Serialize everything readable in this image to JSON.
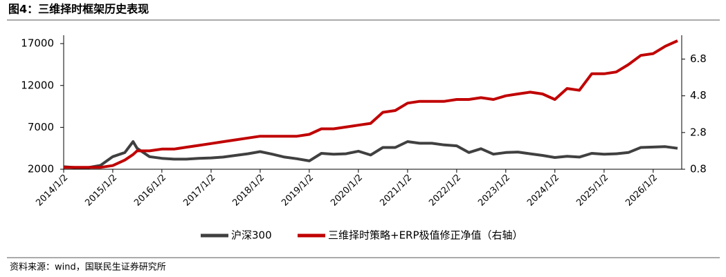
{
  "chart_data": {
    "type": "line",
    "title": "图4：三维择时框架历史表现",
    "source": "资料来源：wind，国联民生证券研究所",
    "x": [
      "2014/1/2",
      "2014/4/2",
      "2014/7/2",
      "2014/10/2",
      "2015/1/2",
      "2015/4/2",
      "2015/6/2",
      "2015/7/2",
      "2015/10/2",
      "2016/1/2",
      "2016/4/2",
      "2016/7/2",
      "2016/10/2",
      "2017/1/2",
      "2017/4/2",
      "2017/7/2",
      "2017/10/2",
      "2018/1/2",
      "2018/4/2",
      "2018/7/2",
      "2018/10/2",
      "2019/1/2",
      "2019/4/2",
      "2019/7/2",
      "2019/10/2",
      "2020/1/2",
      "2020/4/2",
      "2020/7/2",
      "2020/10/2",
      "2021/1/2",
      "2021/4/2",
      "2021/7/2",
      "2021/10/2",
      "2022/1/2",
      "2022/4/2",
      "2022/7/2",
      "2022/10/2",
      "2023/1/2",
      "2023/4/2",
      "2023/7/2",
      "2023/10/2",
      "2024/1/2",
      "2024/4/2",
      "2024/7/2",
      "2024/10/2",
      "2025/1/2",
      "2025/4/2",
      "2025/7/2",
      "2025/10/2",
      "2026/1/2",
      "2026/4/2",
      "2026/7/2"
    ],
    "series": [
      {
        "name": "沪深300",
        "color": "#404040",
        "values": [
          2300,
          2200,
          2200,
          2450,
          3500,
          4000,
          5300,
          4500,
          3500,
          3300,
          3200,
          3200,
          3300,
          3350,
          3450,
          3650,
          3850,
          4100,
          3800,
          3450,
          3250,
          3000,
          3900,
          3800,
          3850,
          4150,
          3700,
          4600,
          4600,
          5300,
          5100,
          5100,
          4900,
          4800,
          4000,
          4450,
          3800,
          4000,
          4050,
          3850,
          3650,
          3400,
          3550,
          3450,
          3900,
          3800,
          3850,
          4000,
          4600,
          4650,
          4700,
          4500
        ]
      },
      {
        "name": "三维择时策略+ERP极值修正净值（右轴）",
        "color": "#c00000",
        "axis": "y2",
        "values": [
          0.9,
          0.9,
          0.9,
          0.9,
          1.0,
          1.3,
          1.6,
          1.8,
          1.8,
          1.9,
          1.9,
          2.0,
          2.1,
          2.2,
          2.3,
          2.4,
          2.5,
          2.6,
          2.6,
          2.6,
          2.6,
          2.7,
          3.0,
          3.0,
          3.1,
          3.2,
          3.3,
          3.9,
          4.0,
          4.4,
          4.5,
          4.5,
          4.5,
          4.6,
          4.6,
          4.7,
          4.6,
          4.8,
          4.9,
          5.0,
          4.9,
          4.6,
          5.2,
          5.1,
          6.0,
          6.0,
          6.1,
          6.5,
          7.0,
          7.1,
          7.5,
          7.8
        ]
      }
    ],
    "xlim": [
      "2014/1/2",
      "2026/8/2"
    ],
    "xticks": [
      "2014/1/2",
      "2015/1/2",
      "2016/1/2",
      "2017/1/2",
      "2018/1/2",
      "2019/1/2",
      "2020/1/2",
      "2021/1/2",
      "2022/1/2",
      "2023/1/2",
      "2024/1/2",
      "2025/1/2",
      "2026/1/2"
    ],
    "ylim": [
      2000,
      18000
    ],
    "yticks": [
      2000,
      7000,
      12000,
      17000
    ],
    "y2lim": [
      0.8,
      8.1
    ],
    "y2ticks": [
      0.8,
      2.8,
      4.8,
      6.8
    ]
  }
}
